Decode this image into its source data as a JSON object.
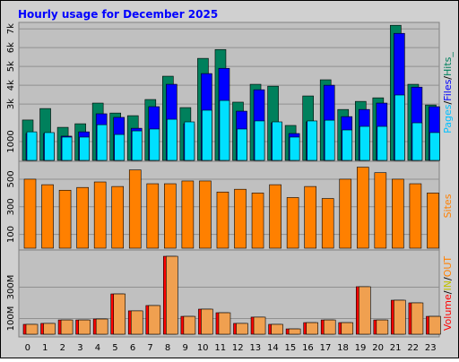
{
  "chart_data": [
    {
      "type": "bar",
      "title": "Hourly usage for December 2025",
      "ylim": [
        0,
        7200
      ],
      "yticks": [
        1000,
        {
          "value": 3000,
          "label": "3k"
        },
        {
          "value": 4000,
          "label": "4k"
        },
        {
          "value": 5000,
          "label": "5k"
        },
        {
          "value": 6000,
          "label": "6k"
        },
        {
          "value": 7000,
          "label": "7k"
        }
      ],
      "grid": true,
      "legend_separator": "/",
      "legend": [
        {
          "name": "Pages",
          "color": "#00c0ff"
        },
        {
          "name": "Files",
          "color": "#0000ff"
        },
        {
          "name": "Hits_",
          "color": "#00805c"
        }
      ],
      "series": [
        {
          "color": "#00805c",
          "values": [
            2150,
            2760,
            1760,
            1950,
            3050,
            2520,
            2380,
            3240,
            4480,
            2810,
            5430,
            5900,
            3100,
            4050,
            3950,
            1860,
            3430,
            4290,
            2710,
            3140,
            3330,
            7190,
            4050,
            2950
          ]
        },
        {
          "color": "#0000ff",
          "values": [
            1430,
            1430,
            1290,
            1520,
            2480,
            2290,
            1710,
            2860,
            4050,
            1950,
            4620,
            4900,
            2620,
            3760,
            2000,
            1430,
            2050,
            4000,
            2330,
            2710,
            3050,
            6760,
            3900,
            2860
          ]
        },
        {
          "color": "#00e0ff",
          "values": [
            1520,
            1480,
            1240,
            1240,
            1900,
            1380,
            1570,
            1670,
            2190,
            2050,
            2670,
            3190,
            1670,
            2100,
            2050,
            1240,
            2100,
            2140,
            1620,
            1810,
            1810,
            3480,
            2000,
            1480
          ]
        }
      ]
    },
    {
      "type": "bar",
      "ylim": [
        0,
        610
      ],
      "yticks": [
        100,
        300,
        500
      ],
      "grid": true,
      "legend": [
        {
          "name": "Sites",
          "color": "#ff8000"
        }
      ],
      "series": [
        {
          "color": "#ff8000",
          "values": [
            500,
            460,
            420,
            440,
            480,
            447,
            567,
            467,
            467,
            487,
            487,
            407,
            427,
            400,
            460,
            367,
            447,
            360,
            500,
            587,
            547,
            500,
            467,
            400
          ]
        }
      ]
    },
    {
      "type": "bar",
      "categories": [
        "0",
        "1",
        "2",
        "3",
        "4",
        "5",
        "6",
        "7",
        "8",
        "9",
        "10",
        "11",
        "12",
        "13",
        "14",
        "15",
        "16",
        "17",
        "18",
        "19",
        "20",
        "21",
        "22",
        "23"
      ],
      "ylim": [
        0,
        520
      ],
      "yticks": [
        {
          "value": 100,
          "label": "100M"
        },
        {
          "value": 300,
          "label": "300M"
        }
      ],
      "grid": true,
      "legend_separator": "/",
      "legend": [
        {
          "name": "Volume",
          "color": "#ff0000"
        },
        {
          "name": "IN",
          "color": "#c0c000"
        },
        {
          "name": "OUT",
          "color": "#ff8000"
        }
      ],
      "series": [
        {
          "color": "#ff0000",
          "values": [
            63,
            69,
            91,
            91,
            97,
            257,
            149,
            183,
            497,
            114,
            160,
            137,
            69,
            109,
            63,
            34,
            74,
            91,
            74,
            303,
            91,
            217,
            200,
            114
          ]
        },
        {
          "color": "#f0a050",
          "values": [
            63,
            69,
            91,
            91,
            97,
            257,
            149,
            183,
            497,
            114,
            160,
            137,
            69,
            109,
            63,
            34,
            74,
            91,
            74,
            303,
            91,
            217,
            200,
            114
          ]
        }
      ]
    }
  ]
}
